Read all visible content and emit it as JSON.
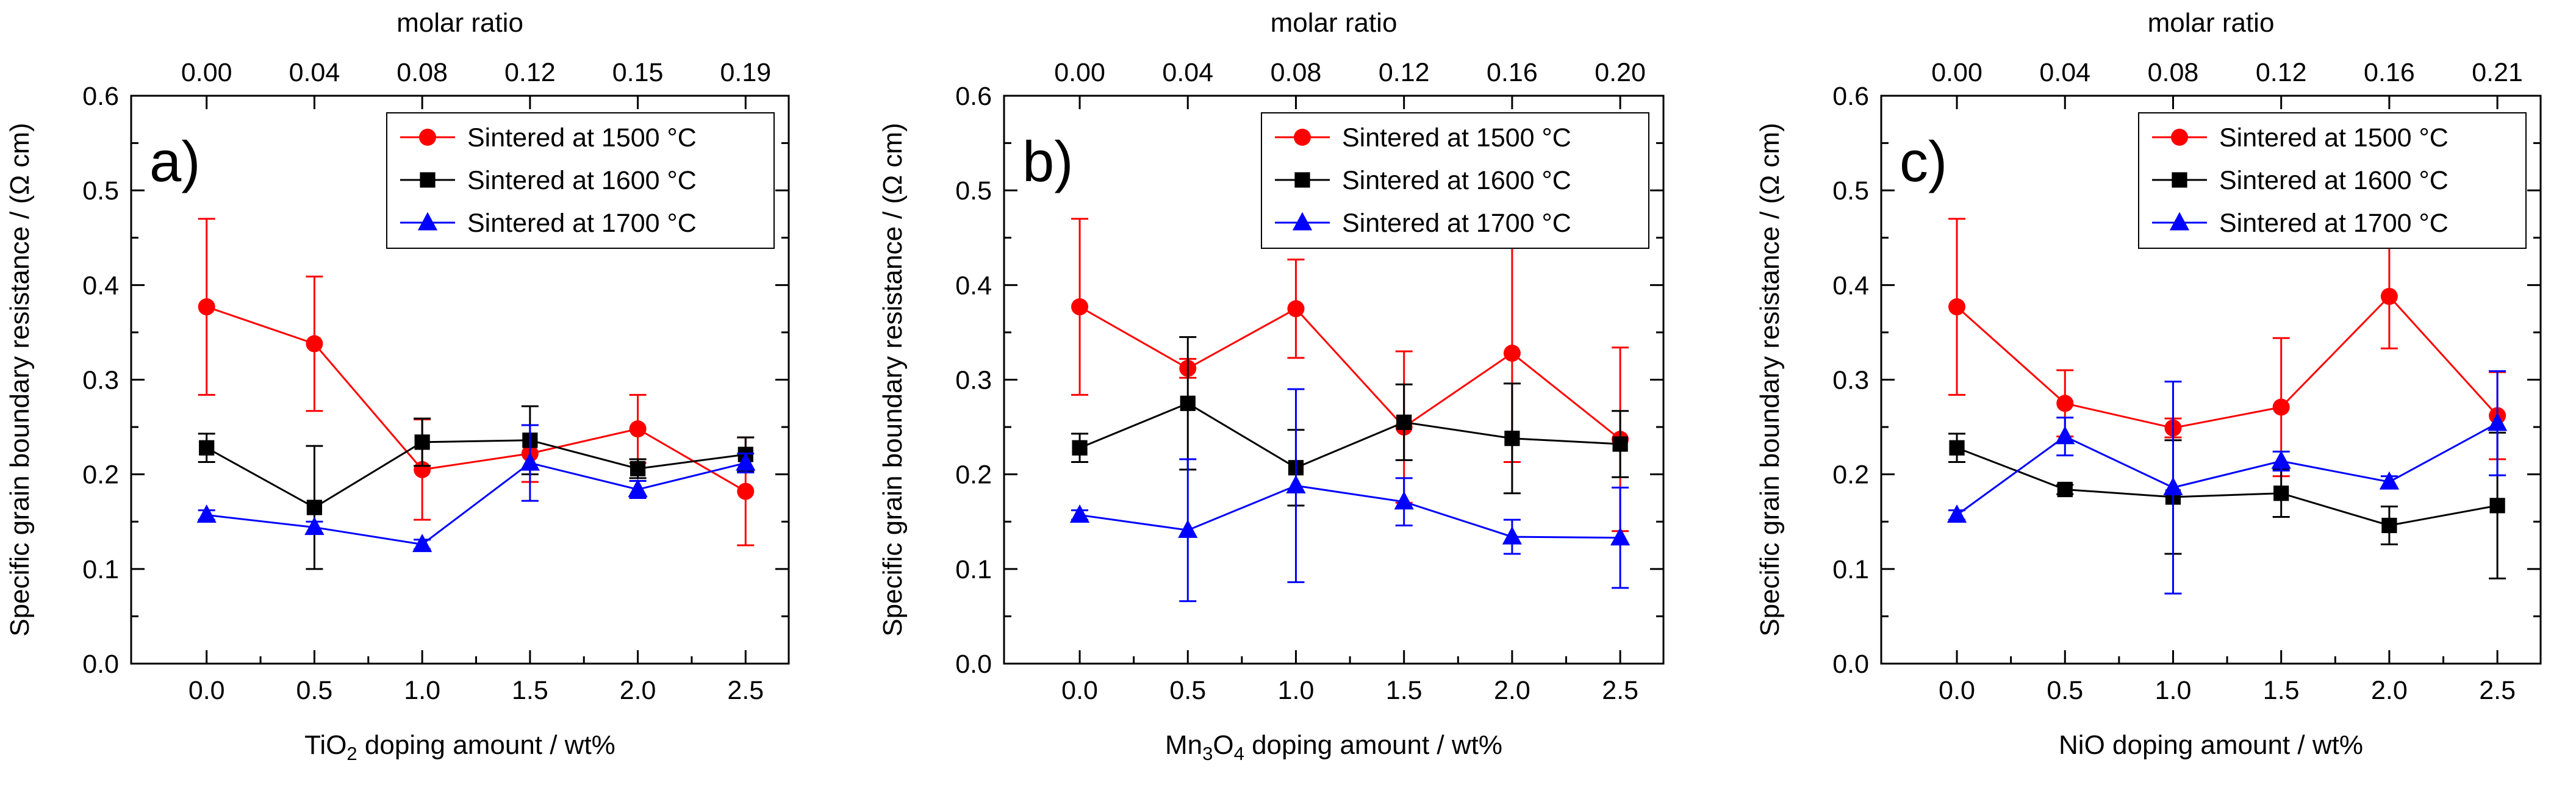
{
  "chart_data": [
    {
      "type": "line",
      "panel_label": "a)",
      "xlabel_parts": [
        {
          "text": "TiO",
          "role": "base"
        },
        {
          "text": "2",
          "role": "sub"
        },
        {
          "text": " doping amount / wt%",
          "role": "base"
        }
      ],
      "ylabel": "Specific grain boundary resistance / (Ω cm)",
      "top_axis_title": "molar ratio",
      "x": [
        0.0,
        0.5,
        1.0,
        1.5,
        2.0,
        2.5
      ],
      "x_tick_labels": [
        "0.0",
        "0.5",
        "1.0",
        "1.5",
        "2.0",
        "2.5"
      ],
      "top_tick_labels": [
        "0.00",
        "0.04",
        "0.08",
        "0.12",
        "0.15",
        "0.19"
      ],
      "xlim": [
        -0.35,
        2.7
      ],
      "ylim": [
        0.0,
        0.6
      ],
      "y_ticks": [
        0.0,
        0.1,
        0.2,
        0.3,
        0.4,
        0.5,
        0.6
      ],
      "y_tick_labels": [
        "0.0",
        "0.1",
        "0.2",
        "0.3",
        "0.4",
        "0.5",
        "0.6"
      ],
      "legend_position": "top-right",
      "series": [
        {
          "name": "Sintered at 1500 °C",
          "color": "#ff0000",
          "marker": "circle",
          "values": [
            0.377,
            0.338,
            0.205,
            0.222,
            0.248,
            0.182
          ],
          "errors": [
            0.093,
            0.071,
            0.053,
            0.03,
            0.036,
            0.057
          ]
        },
        {
          "name": "Sintered at 1600 °C",
          "color": "#000000",
          "marker": "square",
          "values": [
            0.228,
            0.165,
            0.234,
            0.236,
            0.206,
            0.221
          ],
          "errors": [
            0.015,
            0.065,
            0.025,
            0.036,
            0.01,
            0.018
          ]
        },
        {
          "name": "Sintered at 1700 °C",
          "color": "#0000ff",
          "marker": "triangle",
          "values": [
            0.157,
            0.144,
            0.126,
            0.212,
            0.184,
            0.212
          ],
          "errors": [
            0.005,
            0.006,
            0.005,
            0.04,
            0.009,
            0.01
          ]
        }
      ]
    },
    {
      "type": "line",
      "panel_label": "b)",
      "xlabel_parts": [
        {
          "text": "Mn",
          "role": "base"
        },
        {
          "text": "3",
          "role": "sub"
        },
        {
          "text": "O",
          "role": "base"
        },
        {
          "text": "4",
          "role": "sub"
        },
        {
          "text": " doping amount / wt%",
          "role": "base"
        }
      ],
      "ylabel": "Specific grain boundary resistance / (Ω cm)",
      "top_axis_title": "molar ratio",
      "x": [
        0.0,
        0.5,
        1.0,
        1.5,
        2.0,
        2.5
      ],
      "x_tick_labels": [
        "0.0",
        "0.5",
        "1.0",
        "1.5",
        "2.0",
        "2.5"
      ],
      "top_tick_labels": [
        "0.00",
        "0.04",
        "0.08",
        "0.12",
        "0.16",
        "0.20"
      ],
      "xlim": [
        -0.35,
        2.7
      ],
      "ylim": [
        0.0,
        0.6
      ],
      "y_ticks": [
        0.0,
        0.1,
        0.2,
        0.3,
        0.4,
        0.5,
        0.6
      ],
      "y_tick_labels": [
        "0.0",
        "0.1",
        "0.2",
        "0.3",
        "0.4",
        "0.5",
        "0.6"
      ],
      "legend_position": "top-right",
      "series": [
        {
          "name": "Sintered at 1500 °C",
          "color": "#ff0000",
          "marker": "circle",
          "values": [
            0.377,
            0.312,
            0.375,
            0.25,
            0.328,
            0.237
          ],
          "errors": [
            0.093,
            0.01,
            0.052,
            0.08,
            0.115,
            0.097
          ]
        },
        {
          "name": "Sintered at 1600 °C",
          "color": "#000000",
          "marker": "square",
          "values": [
            0.228,
            0.275,
            0.207,
            0.255,
            0.238,
            0.232
          ],
          "errors": [
            0.015,
            0.07,
            0.04,
            0.04,
            0.058,
            0.035
          ]
        },
        {
          "name": "Sintered at 1700 °C",
          "color": "#0000ff",
          "marker": "triangle",
          "values": [
            0.157,
            0.141,
            0.188,
            0.171,
            0.134,
            0.133
          ],
          "errors": [
            0.005,
            0.075,
            0.102,
            0.025,
            0.018,
            0.053
          ]
        }
      ]
    },
    {
      "type": "line",
      "panel_label": "c)",
      "xlabel_parts": [
        {
          "text": "NiO doping amount / wt%",
          "role": "base"
        }
      ],
      "ylabel": "Specific grain boundary resistance / (Ω cm)",
      "top_axis_title": "molar ratio",
      "x": [
        0.0,
        0.5,
        1.0,
        1.5,
        2.0,
        2.5
      ],
      "x_tick_labels": [
        "0.0",
        "0.5",
        "1.0",
        "1.5",
        "2.0",
        "2.5"
      ],
      "top_tick_labels": [
        "0.00",
        "0.04",
        "0.08",
        "0.12",
        "0.16",
        "0.21"
      ],
      "xlim": [
        -0.35,
        2.7
      ],
      "ylim": [
        0.0,
        0.6
      ],
      "y_ticks": [
        0.0,
        0.1,
        0.2,
        0.3,
        0.4,
        0.5,
        0.6
      ],
      "y_tick_labels": [
        "0.0",
        "0.1",
        "0.2",
        "0.3",
        "0.4",
        "0.5",
        "0.6"
      ],
      "legend_position": "top-right",
      "series": [
        {
          "name": "Sintered at 1500 °C",
          "color": "#ff0000",
          "marker": "circle",
          "values": [
            0.377,
            0.275,
            0.249,
            0.271,
            0.388,
            0.262
          ],
          "errors": [
            0.093,
            0.035,
            0.01,
            0.073,
            0.055,
            0.046
          ]
        },
        {
          "name": "Sintered at 1600 °C",
          "color": "#000000",
          "marker": "square",
          "values": [
            0.228,
            0.184,
            0.176,
            0.18,
            0.146,
            0.167
          ],
          "errors": [
            0.015,
            0.005,
            0.06,
            0.025,
            0.02,
            0.077
          ]
        },
        {
          "name": "Sintered at 1700 °C",
          "color": "#0000ff",
          "marker": "triangle",
          "values": [
            0.157,
            0.24,
            0.186,
            0.214,
            0.192,
            0.254
          ],
          "errors": [
            0.005,
            0.02,
            0.112,
            0.01,
            0.006,
            0.055
          ]
        }
      ]
    }
  ]
}
